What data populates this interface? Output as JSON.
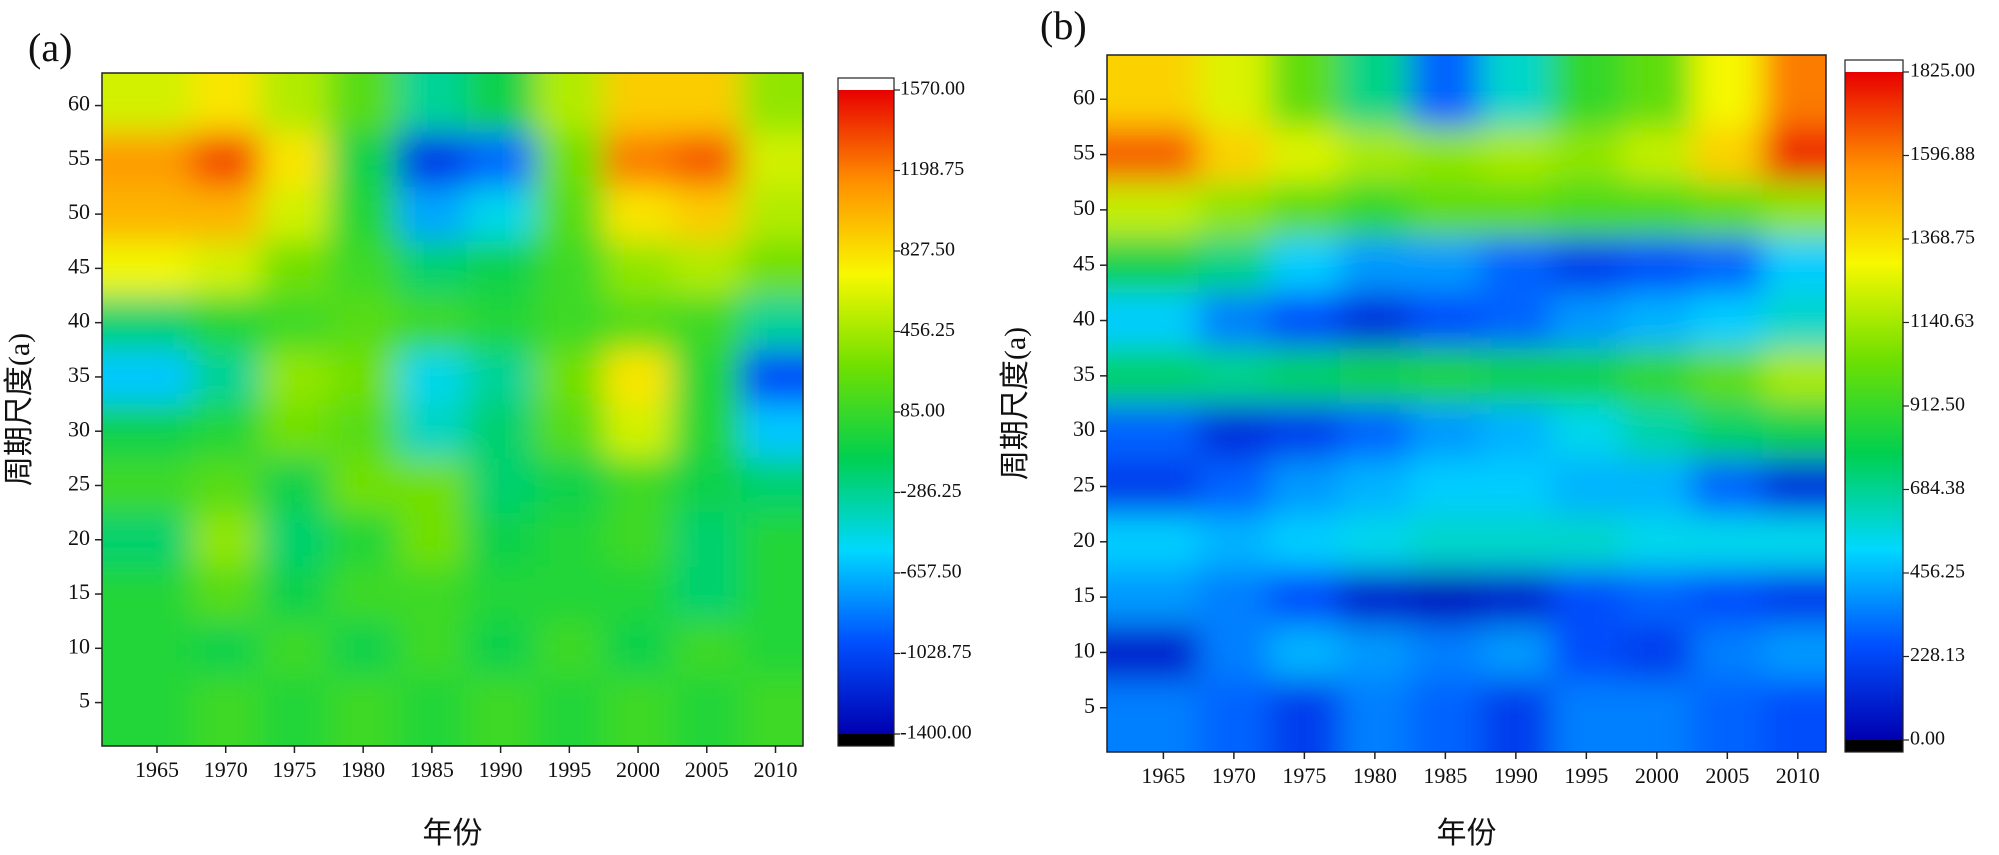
{
  "chart_data": [
    {
      "type": "heatmap",
      "panel_label": "(a)",
      "x_label": "年份",
      "y_label": "周期尺度(a)",
      "x": [
        1965,
        1970,
        1975,
        1980,
        1985,
        1990,
        1995,
        2000,
        2005,
        2010
      ],
      "y": [
        60,
        55,
        50,
        45,
        40,
        35,
        30,
        25,
        20,
        15,
        10,
        5
      ],
      "z": [
        [
          600,
          800,
          500,
          200,
          -300,
          -100,
          500,
          900,
          900,
          400
        ],
        [
          1100,
          1350,
          800,
          -100,
          -1100,
          -900,
          300,
          1200,
          1300,
          600
        ],
        [
          1000,
          1000,
          600,
          0,
          -700,
          -500,
          200,
          800,
          900,
          500
        ],
        [
          700,
          600,
          300,
          100,
          -200,
          -100,
          100,
          400,
          500,
          300
        ],
        [
          -200,
          0,
          100,
          200,
          100,
          0,
          100,
          200,
          100,
          -300
        ],
        [
          -600,
          -300,
          400,
          300,
          -500,
          -300,
          300,
          800,
          0,
          -1000
        ],
        [
          -100,
          0,
          300,
          200,
          -400,
          -200,
          200,
          600,
          0,
          -600
        ],
        [
          100,
          200,
          -100,
          300,
          300,
          -200,
          -100,
          100,
          -100,
          -200
        ],
        [
          -200,
          400,
          -200,
          0,
          300,
          -100,
          0,
          100,
          -200,
          0
        ],
        [
          0,
          200,
          -100,
          100,
          100,
          0,
          0,
          0,
          -200,
          0
        ],
        [
          0,
          -100,
          100,
          -100,
          100,
          -100,
          100,
          -100,
          100,
          0
        ],
        [
          0,
          100,
          0,
          100,
          0,
          100,
          0,
          100,
          0,
          100
        ]
      ],
      "xlim": [
        1961,
        2012
      ],
      "ylim": [
        1,
        63
      ],
      "xticks": [
        1965,
        1970,
        1975,
        1980,
        1985,
        1990,
        1995,
        2000,
        2005,
        2010
      ],
      "yticks": [
        5,
        10,
        15,
        20,
        25,
        30,
        35,
        40,
        45,
        50,
        55,
        60
      ],
      "zlim": [
        -1400,
        1570
      ],
      "zticks": [
        {
          "value": -1400,
          "label": "-1400.00"
        },
        {
          "value": -1028.75,
          "label": "-1028.75"
        },
        {
          "value": -657.5,
          "label": "-657.50"
        },
        {
          "value": -286.25,
          "label": "-286.25"
        },
        {
          "value": 85,
          "label": "85.00"
        },
        {
          "value": 456.25,
          "label": "456.25"
        },
        {
          "value": 827.5,
          "label": "827.50"
        },
        {
          "value": 1198.75,
          "label": "1198.75"
        },
        {
          "value": 1570,
          "label": "1570.00"
        }
      ],
      "colorscale": [
        "#0000b0",
        "#0050ff",
        "#00d8ff",
        "#00d050",
        "#70e000",
        "#f8f800",
        "#ff9000",
        "#e80000"
      ]
    },
    {
      "type": "heatmap",
      "panel_label": "(b)",
      "x_label": "年份",
      "y_label": "周期尺度(a)",
      "x": [
        1965,
        1970,
        1975,
        1980,
        1985,
        1990,
        1995,
        2000,
        2005,
        2010
      ],
      "y": [
        60,
        55,
        50,
        45,
        40,
        35,
        30,
        25,
        20,
        15,
        10,
        5
      ],
      "z": [
        [
          1400,
          1250,
          1000,
          700,
          300,
          600,
          900,
          1000,
          1300,
          1600
        ],
        [
          1650,
          1400,
          1250,
          1150,
          1100,
          1150,
          1100,
          1200,
          1400,
          1750
        ],
        [
          1200,
          1100,
          1000,
          900,
          1000,
          1000,
          950,
          950,
          1000,
          1100
        ],
        [
          800,
          700,
          500,
          400,
          400,
          300,
          200,
          250,
          300,
          500
        ],
        [
          500,
          350,
          250,
          150,
          250,
          300,
          400,
          450,
          500,
          600
        ],
        [
          750,
          700,
          750,
          800,
          850,
          800,
          800,
          900,
          1000,
          1150
        ],
        [
          300,
          150,
          200,
          300,
          400,
          450,
          550,
          650,
          750,
          800
        ],
        [
          200,
          300,
          400,
          450,
          500,
          500,
          450,
          450,
          300,
          150
        ],
        [
          500,
          450,
          500,
          550,
          600,
          600,
          600,
          550,
          550,
          550
        ],
        [
          400,
          350,
          250,
          100,
          50,
          100,
          250,
          300,
          250,
          200
        ],
        [
          100,
          350,
          450,
          400,
          350,
          400,
          250,
          200,
          350,
          400
        ],
        [
          350,
          300,
          200,
          350,
          300,
          200,
          350,
          350,
          300,
          250
        ]
      ],
      "xlim": [
        1961,
        2012
      ],
      "ylim": [
        1,
        64
      ],
      "xticks": [
        1965,
        1970,
        1975,
        1980,
        1985,
        1990,
        1995,
        2000,
        2005,
        2010
      ],
      "yticks": [
        5,
        10,
        15,
        20,
        25,
        30,
        35,
        40,
        45,
        50,
        55,
        60
      ],
      "zlim": [
        0,
        1825
      ],
      "zticks": [
        {
          "value": 0,
          "label": "0.00"
        },
        {
          "value": 228.13,
          "label": "228.13"
        },
        {
          "value": 456.25,
          "label": "456.25"
        },
        {
          "value": 684.38,
          "label": "684.38"
        },
        {
          "value": 912.5,
          "label": "912.50"
        },
        {
          "value": 1140.63,
          "label": "1140.63"
        },
        {
          "value": 1368.75,
          "label": "1368.75"
        },
        {
          "value": 1596.88,
          "label": "1596.88"
        },
        {
          "value": 1825,
          "label": "1825.00"
        }
      ],
      "colorscale": [
        "#0000b0",
        "#0050ff",
        "#00d8ff",
        "#00d050",
        "#70e000",
        "#f8f800",
        "#ff9000",
        "#e80000"
      ]
    }
  ]
}
